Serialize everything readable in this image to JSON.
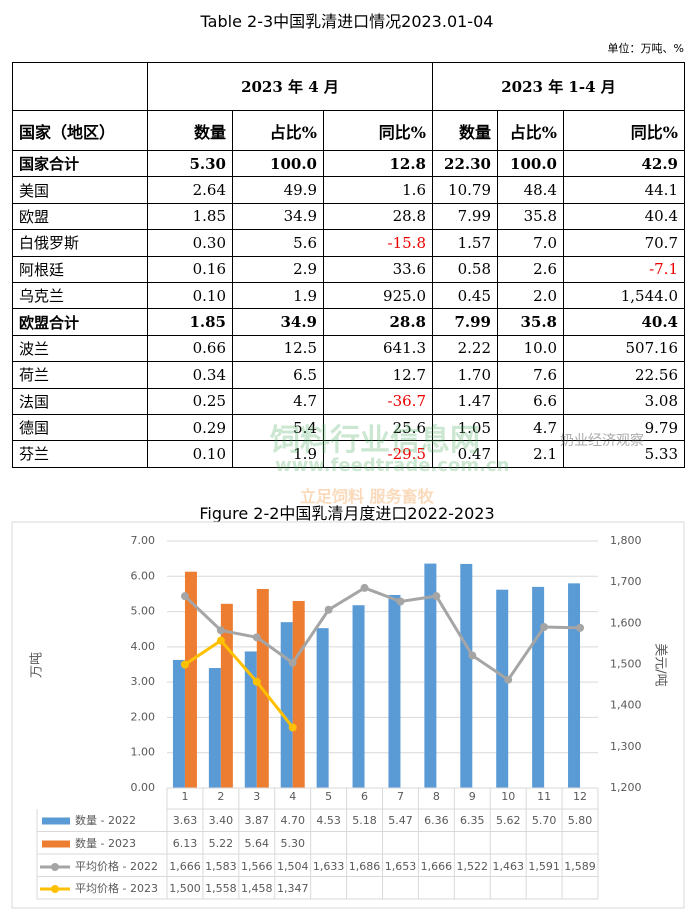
{
  "document": {
    "title": "Table 2-3中国乳清进口情况2023.01-04",
    "unit": "单位：万吨、%",
    "table": {
      "group_headers": [
        "",
        "2023 年 4 月",
        "2023 年 1-4 月"
      ],
      "headers": [
        "国家（地区）",
        "数量",
        "占比%",
        "同比%",
        "数量",
        "占比%",
        "同比%"
      ],
      "bold_rows": [
        0,
        6
      ],
      "rows": [
        [
          "国家合计",
          "5.30",
          "100.0",
          "12.8",
          "22.30",
          "100.0",
          "42.9"
        ],
        [
          "美国",
          "2.64",
          "49.9",
          "1.6",
          "10.79",
          "48.4",
          "44.1"
        ],
        [
          "欧盟",
          "1.85",
          "34.9",
          "28.8",
          "7.99",
          "35.8",
          "40.4"
        ],
        [
          "白俄罗斯",
          "0.30",
          "5.6",
          "-15.8",
          "1.57",
          "7.0",
          "70.7"
        ],
        [
          "阿根廷",
          "0.16",
          "2.9",
          "33.6",
          "0.58",
          "2.6",
          "-7.1"
        ],
        [
          "乌克兰",
          "0.10",
          "1.9",
          "925.0",
          "0.45",
          "2.0",
          "1,544.0"
        ],
        [
          "欧盟合计",
          "1.85",
          "34.9",
          "28.8",
          "7.99",
          "35.8",
          "40.4"
        ],
        [
          "波兰",
          "0.66",
          "12.5",
          "641.3",
          "2.22",
          "10.0",
          "507.16"
        ],
        [
          "荷兰",
          "0.34",
          "6.5",
          "12.7",
          "1.70",
          "7.6",
          "22.56"
        ],
        [
          "法国",
          "0.25",
          "4.7",
          "-36.7",
          "1.47",
          "6.6",
          "3.08"
        ],
        [
          "德国",
          "0.29",
          "5.4",
          "25.6",
          "1.05",
          "4.7",
          "9.79"
        ],
        [
          "芬兰",
          "0.10",
          "1.9",
          "-29.5",
          "0.47",
          "2.1",
          "5.33"
        ]
      ]
    },
    "watermarks": [
      "饲料行业信息网",
      "www.feedtrade.com.cn",
      "立足饲料  服务畜牧",
      "奶业经济观察"
    ]
  },
  "chart_data": {
    "type": "bar_line",
    "title": "Figure 2-2中国乳清月度进口2022-2023",
    "y_label": "万吨",
    "y2_label": "美元/吨",
    "categories": [
      "1",
      "2",
      "3",
      "4",
      "5",
      "6",
      "7",
      "8",
      "9",
      "10",
      "11",
      "12"
    ],
    "ylim": [
      0,
      7
    ],
    "yticks": [
      {
        "value": 0,
        "label": "0.00"
      },
      {
        "value": 1,
        "label": "1.00"
      },
      {
        "value": 2,
        "label": "2.00"
      },
      {
        "value": 3,
        "label": "3.00"
      },
      {
        "value": 4,
        "label": "4.00"
      },
      {
        "value": 5,
        "label": "5.00"
      },
      {
        "value": 6,
        "label": "6.00"
      },
      {
        "value": 7,
        "label": "7.00"
      }
    ],
    "y2lim": [
      1200,
      1800
    ],
    "y2ticks": [
      {
        "value": 1200,
        "label": "1,200"
      },
      {
        "value": 1300,
        "label": "1,300"
      },
      {
        "value": 1400,
        "label": "1,400"
      },
      {
        "value": 1500,
        "label": "1,500"
      },
      {
        "value": 1600,
        "label": "1,600"
      },
      {
        "value": 1700,
        "label": "1,700"
      },
      {
        "value": 1800,
        "label": "1,800"
      }
    ],
    "series": [
      {
        "name": "数量 - 2022",
        "kind": "bar",
        "color": "#5b9bd5",
        "values": [
          3.63,
          3.4,
          3.87,
          4.7,
          4.53,
          5.18,
          5.47,
          6.36,
          6.35,
          5.62,
          5.7,
          5.8
        ],
        "value_labels": [
          "3.63",
          "3.40",
          "3.87",
          "4.70",
          "4.53",
          "5.18",
          "5.47",
          "6.36",
          "6.35",
          "5.62",
          "5.70",
          "5.80"
        ]
      },
      {
        "name": "数量 - 2023",
        "kind": "bar",
        "color": "#ed7d31",
        "values": [
          6.13,
          5.22,
          5.64,
          5.3,
          null,
          null,
          null,
          null,
          null,
          null,
          null,
          null
        ],
        "value_labels": [
          "6.13",
          "5.22",
          "5.64",
          "5.30",
          null,
          null,
          null,
          null,
          null,
          null,
          null,
          null
        ]
      },
      {
        "name": "平均价格 - 2022",
        "kind": "line",
        "axis": "y2",
        "color": "#a5a5a5",
        "values": [
          1666,
          1583,
          1566,
          1504,
          1633,
          1686,
          1653,
          1666,
          1522,
          1463,
          1591,
          1589
        ],
        "value_labels": [
          "1,666",
          "1,583",
          "1,566",
          "1,504",
          "1,633",
          "1,686",
          "1,653",
          "1,666",
          "1,522",
          "1,463",
          "1,591",
          "1,589"
        ]
      },
      {
        "name": "平均价格 - 2023",
        "kind": "line",
        "axis": "y2",
        "color": "#ffc000",
        "values": [
          1500,
          1558,
          1458,
          1347,
          null,
          null,
          null,
          null,
          null,
          null,
          null,
          null
        ],
        "value_labels": [
          "1,500",
          "1,558",
          "1,458",
          "1,347",
          null,
          null,
          null,
          null,
          null,
          null,
          null,
          null
        ]
      }
    ]
  }
}
